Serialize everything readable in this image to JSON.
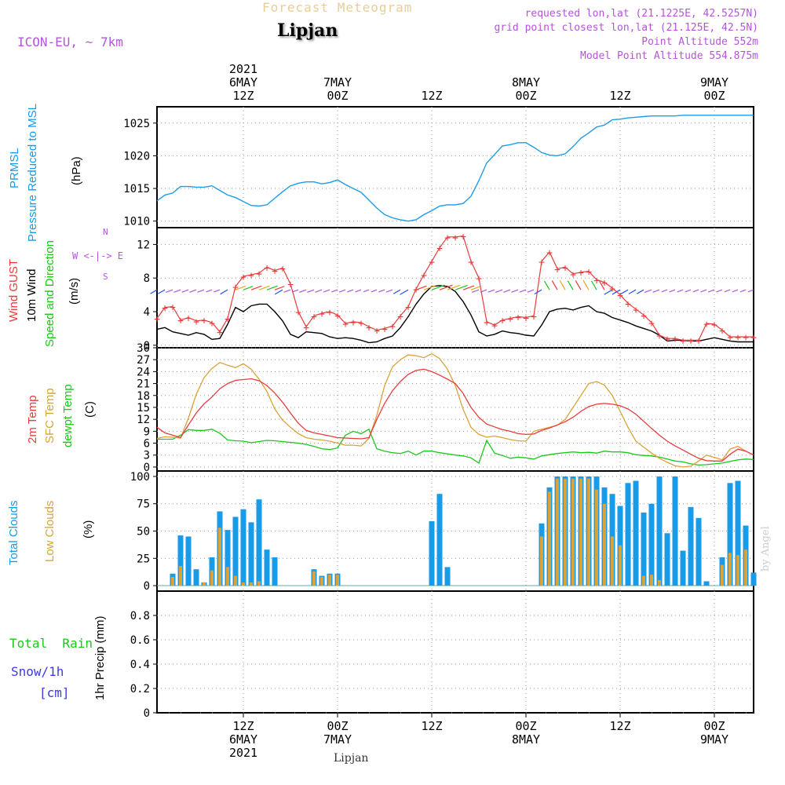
{
  "header": {
    "product": "Forecast Meteogram",
    "model": "ICON-EU, ~ 7km",
    "location": "Lipjan",
    "requested": "requested lon,lat (21.1225E, 42.5257N)",
    "grid_point": "grid point closest lon,lat (21.125E, 42.5N)",
    "point_alt": "Point Altitude 552m",
    "model_alt": "Model Point Altitude 554.875m"
  },
  "footer": {
    "location": "Lipjan",
    "credit": "by Angel"
  },
  "time_axis": {
    "ticks": [
      {
        "t": 12,
        "hour": "12Z",
        "date": "6MAY",
        "year": "2021"
      },
      {
        "t": 24,
        "hour": "00Z",
        "date": "7MAY",
        "year": ""
      },
      {
        "t": 36,
        "hour": "12Z",
        "date": "",
        "year": ""
      },
      {
        "t": 48,
        "hour": "00Z",
        "date": "8MAY",
        "year": ""
      },
      {
        "t": 60,
        "hour": "12Z",
        "date": "",
        "year": ""
      },
      {
        "t": 72,
        "hour": "00Z",
        "date": "9MAY",
        "year": ""
      }
    ],
    "range": [
      1,
      77
    ],
    "units": "hours since 2021-05-06 00Z"
  },
  "panels": {
    "pressure": {
      "title": "PRMSL",
      "subtitle": "Pressure Reduced to MSL",
      "units": "(hPa)"
    },
    "wind": {
      "title_gust": "Wind GUST",
      "title_wind": "10m Wind",
      "title_dir": "Speed and Direction",
      "units": "(m/s)",
      "compass_n": "N",
      "compass_s": "S",
      "compass_we": "W <-|-> E"
    },
    "temp": {
      "title_2m": "2m Temp",
      "title_sfc": "SFC Temp",
      "title_dew": "dewpt Temp",
      "units": "(C)"
    },
    "clouds": {
      "title_total": "Total Clouds",
      "title_low": "Low Clouds",
      "units": "(%)"
    },
    "precip": {
      "title_rain": "Total  Rain",
      "title_snow": "Snow/1h",
      "title_cm": "[cm]",
      "units": "1hr Precip (mm)"
    }
  },
  "colors": {
    "pressure": "#1e9be8",
    "gust": "#e83c3c",
    "wind": "#000000",
    "t2m": "#e83c3c",
    "sfc": "#d9a23a",
    "dew": "#18c918",
    "total_cloud": "#189be8",
    "low_cloud": "#d9a23a",
    "purple": "#b455d8",
    "rain": "#18c918",
    "snow": "#3c3ce0"
  },
  "chart_data": [
    {
      "type": "line",
      "title": "PRMSL Pressure Reduced to MSL",
      "ylabel": "hPa",
      "ylim": [
        1009,
        1027.5
      ],
      "yticks": [
        1010,
        1015,
        1020,
        1025
      ],
      "x": [
        1,
        2,
        3,
        4,
        5,
        6,
        7,
        8,
        9,
        10,
        11,
        12,
        13,
        14,
        15,
        16,
        17,
        18,
        19,
        20,
        21,
        22,
        23,
        24,
        25,
        26,
        27,
        28,
        29,
        30,
        31,
        32,
        33,
        34,
        35,
        36,
        37,
        38,
        39,
        40,
        41,
        42,
        43,
        44,
        45,
        46,
        47,
        48,
        49,
        50,
        51,
        52,
        53,
        54,
        55,
        56,
        57,
        58,
        59,
        60,
        61,
        62,
        63,
        64,
        65,
        66,
        67,
        68,
        69,
        70,
        71,
        72,
        73,
        74,
        75,
        76,
        77
      ],
      "series": [
        {
          "name": "PRMSL",
          "values": [
            1013.1,
            1014.0,
            1014.3,
            1015.3,
            1015.3,
            1015.2,
            1015.2,
            1015.4,
            1014.7,
            1014.0,
            1013.6,
            1013.0,
            1012.4,
            1012.3,
            1012.5,
            1013.5,
            1014.5,
            1015.4,
            1015.8,
            1016.0,
            1016.0,
            1015.7,
            1015.9,
            1016.3,
            1015.6,
            1015.0,
            1014.4,
            1013.2,
            1012.0,
            1011.0,
            1010.5,
            1010.2,
            1010.0,
            1010.2,
            1011.0,
            1011.6,
            1012.3,
            1012.5,
            1012.5,
            1012.7,
            1013.8,
            1016.2,
            1018.9,
            1020.2,
            1021.5,
            1021.7,
            1022.0,
            1022.0,
            1021.3,
            1020.5,
            1020.1,
            1020.0,
            1020.3,
            1021.4,
            1022.7,
            1023.5,
            1024.4,
            1024.7,
            1025.5,
            1025.6,
            1025.8,
            1025.9,
            1026.0,
            1026.1,
            1026.1,
            1026.1,
            1026.1,
            1026.2,
            1026.2,
            1026.2,
            1026.2,
            1026.2,
            1026.2,
            1026.2,
            1026.2,
            1026.2,
            1026.2
          ]
        }
      ]
    },
    {
      "type": "line",
      "title": "Wind GUST / 10m Wind",
      "ylabel": "m/s",
      "ylim": [
        -0.3,
        14
      ],
      "yticks": [
        0,
        4,
        8,
        12
      ],
      "x": [
        1,
        2,
        3,
        4,
        5,
        6,
        7,
        8,
        9,
        10,
        11,
        12,
        13,
        14,
        15,
        16,
        17,
        18,
        19,
        20,
        21,
        22,
        23,
        24,
        25,
        26,
        27,
        28,
        29,
        30,
        31,
        32,
        33,
        34,
        35,
        36,
        37,
        38,
        39,
        40,
        41,
        42,
        43,
        44,
        45,
        46,
        47,
        48,
        49,
        50,
        51,
        52,
        53,
        54,
        55,
        56,
        57,
        58,
        59,
        60,
        61,
        62,
        63,
        64,
        65,
        66,
        67,
        68,
        69,
        70,
        71,
        72,
        73,
        74,
        75,
        76,
        77
      ],
      "series": [
        {
          "name": "Wind GUST",
          "values": [
            3.2,
            4.5,
            4.6,
            3.0,
            3.3,
            2.9,
            3.0,
            2.7,
            1.6,
            3.2,
            7.0,
            8.2,
            8.4,
            8.6,
            9.3,
            8.9,
            9.2,
            7.3,
            4.0,
            2.2,
            3.5,
            3.8,
            4.0,
            3.6,
            2.6,
            2.8,
            2.7,
            2.2,
            1.8,
            2.0,
            2.3,
            3.5,
            4.6,
            6.7,
            8.4,
            10.0,
            11.6,
            12.9,
            12.9,
            13.0,
            10.0,
            8.0,
            2.8,
            2.4,
            3.0,
            3.2,
            3.4,
            3.3,
            3.5,
            10.0,
            11.1,
            9.1,
            9.3,
            8.5,
            8.7,
            8.8,
            7.8,
            7.5,
            6.8,
            6.0,
            5.0,
            4.3,
            3.6,
            2.7,
            1.2,
            0.8,
            0.8,
            0.6,
            0.6,
            0.6,
            2.6,
            2.5,
            1.8,
            1.0,
            1.0,
            1.0,
            1.0
          ]
        },
        {
          "name": "10m Wind",
          "values": [
            1.9,
            2.1,
            1.6,
            1.4,
            1.2,
            1.5,
            1.3,
            0.7,
            0.8,
            2.5,
            4.5,
            4.0,
            4.7,
            4.9,
            4.9,
            4.0,
            2.9,
            1.3,
            0.9,
            1.6,
            1.5,
            1.4,
            1.0,
            0.8,
            0.9,
            0.8,
            0.6,
            0.3,
            0.4,
            0.8,
            1.1,
            2.1,
            3.4,
            4.9,
            6.1,
            7.0,
            7.1,
            7.0,
            6.4,
            5.2,
            3.6,
            1.6,
            1.1,
            1.3,
            1.7,
            1.5,
            1.4,
            1.2,
            1.1,
            2.4,
            4.0,
            4.3,
            4.4,
            4.2,
            4.5,
            4.7,
            4.0,
            3.8,
            3.3,
            3.0,
            2.7,
            2.3,
            2.0,
            1.7,
            1.2,
            0.5,
            0.6,
            0.6,
            0.5,
            0.5,
            0.7,
            0.9,
            0.7,
            0.5,
            0.4,
            0.4,
            0.4
          ]
        }
      ]
    },
    {
      "type": "line",
      "title": "2m Temp / SFC Temp / dewpt Temp",
      "ylabel": "C",
      "ylim": [
        -1,
        30
      ],
      "yticks": [
        0,
        3,
        6,
        9,
        12,
        15,
        18,
        21,
        24,
        27,
        30
      ],
      "x": [
        1,
        2,
        3,
        4,
        5,
        6,
        7,
        8,
        9,
        10,
        11,
        12,
        13,
        14,
        15,
        16,
        17,
        18,
        19,
        20,
        21,
        22,
        23,
        24,
        25,
        26,
        27,
        28,
        29,
        30,
        31,
        32,
        33,
        34,
        35,
        36,
        37,
        38,
        39,
        40,
        41,
        42,
        43,
        44,
        45,
        46,
        47,
        48,
        49,
        50,
        51,
        52,
        53,
        54,
        55,
        56,
        57,
        58,
        59,
        60,
        61,
        62,
        63,
        64,
        65,
        66,
        67,
        68,
        69,
        70,
        71,
        72,
        73,
        74,
        75,
        76,
        77
      ],
      "series": [
        {
          "name": "2m Temp",
          "values": [
            10.0,
            8.6,
            8.0,
            7.4,
            10.6,
            13.6,
            15.9,
            17.6,
            19.7,
            21.0,
            21.8,
            22.0,
            22.2,
            21.7,
            20.5,
            18.6,
            16.3,
            13.6,
            11.0,
            9.2,
            8.6,
            8.2,
            7.8,
            7.4,
            7.3,
            7.2,
            7.1,
            7.4,
            12.0,
            16.0,
            19.2,
            21.5,
            23.3,
            24.3,
            24.6,
            24.0,
            23.1,
            22.1,
            21.0,
            18.5,
            15.0,
            12.5,
            10.8,
            10.1,
            9.4,
            9.0,
            8.4,
            8.2,
            8.3,
            9.2,
            9.8,
            10.6,
            11.4,
            12.5,
            14.0,
            15.2,
            15.8,
            16.0,
            15.8,
            15.4,
            14.6,
            13.3,
            11.5,
            9.7,
            8.0,
            6.5,
            5.3,
            4.3,
            3.2,
            2.2,
            1.6,
            1.5,
            1.5,
            3.2,
            4.5,
            4.0,
            3.0
          ]
        },
        {
          "name": "SFC Temp",
          "values": [
            7.2,
            7.6,
            7.5,
            7.3,
            12.3,
            18.3,
            22.5,
            24.8,
            26.3,
            25.6,
            25.0,
            26.0,
            24.6,
            22.1,
            19.0,
            14.6,
            11.8,
            10.0,
            8.4,
            7.4,
            7.0,
            6.8,
            6.5,
            6.0,
            5.5,
            5.5,
            5.3,
            7.2,
            13.0,
            20.5,
            25.2,
            27.0,
            28.2,
            28.0,
            27.5,
            28.5,
            27.3,
            24.6,
            20.5,
            14.5,
            10.0,
            8.2,
            7.5,
            7.8,
            7.4,
            6.9,
            6.6,
            6.5,
            9.0,
            9.5,
            10.0,
            10.5,
            12.0,
            15.0,
            18.0,
            21.0,
            21.5,
            20.6,
            18.0,
            14.0,
            10.0,
            6.5,
            5.0,
            3.5,
            2.2,
            1.2,
            0.3,
            0.0,
            0.2,
            1.5,
            3.0,
            2.4,
            1.8,
            4.5,
            5.2,
            4.0,
            3.0
          ]
        },
        {
          "name": "dewpt Temp",
          "values": [
            7.0,
            7.0,
            7.0,
            8.0,
            9.4,
            9.2,
            9.2,
            9.5,
            8.5,
            6.8,
            6.6,
            6.5,
            6.1,
            6.4,
            6.7,
            6.6,
            6.4,
            6.2,
            6.0,
            5.7,
            5.2,
            4.6,
            4.4,
            4.8,
            8.0,
            9.0,
            8.4,
            9.5,
            4.6,
            4.0,
            3.6,
            3.4,
            4.0,
            3.0,
            4.0,
            4.0,
            3.6,
            3.3,
            3.0,
            2.8,
            2.3,
            1.0,
            6.7,
            3.5,
            2.9,
            2.2,
            2.5,
            2.3,
            2.0,
            2.8,
            3.1,
            3.4,
            3.6,
            3.8,
            3.6,
            3.7,
            3.5,
            4.0,
            3.8,
            3.8,
            3.6,
            3.1,
            2.9,
            2.8,
            2.5,
            2.0,
            1.5,
            1.3,
            0.8,
            0.5,
            0.6,
            0.8,
            1.0,
            1.4,
            1.8,
            2.0,
            1.9
          ]
        }
      ]
    },
    {
      "type": "bar",
      "title": "Total Clouds / Low Clouds",
      "ylabel": "%",
      "ylim": [
        -5,
        105
      ],
      "yticks": [
        0,
        25,
        50,
        75,
        100
      ],
      "x": [
        1,
        2,
        3,
        4,
        5,
        6,
        7,
        8,
        9,
        10,
        11,
        12,
        13,
        14,
        15,
        16,
        17,
        18,
        19,
        20,
        21,
        22,
        23,
        24,
        25,
        26,
        27,
        28,
        29,
        30,
        31,
        32,
        33,
        34,
        35,
        36,
        37,
        38,
        39,
        40,
        41,
        42,
        43,
        44,
        45,
        46,
        47,
        48,
        49,
        50,
        51,
        52,
        53,
        54,
        55,
        56,
        57,
        58,
        59,
        60,
        61,
        62,
        63,
        64,
        65,
        66,
        67,
        68,
        69,
        70,
        71,
        72,
        73,
        74,
        75,
        76,
        77
      ],
      "series": [
        {
          "name": "Total Clouds",
          "values": [
            0,
            0,
            11,
            46,
            45,
            15,
            3,
            26,
            68,
            51,
            63,
            70,
            58,
            79,
            33,
            26,
            0,
            0,
            0,
            0,
            15,
            9,
            11,
            11,
            0,
            0,
            0,
            0,
            0,
            0,
            0,
            0,
            0,
            0,
            0,
            59,
            84,
            17,
            0,
            0,
            0,
            0,
            0,
            0,
            0,
            0,
            0,
            0,
            0,
            57,
            90,
            100,
            100,
            100,
            100,
            100,
            100,
            90,
            84,
            73,
            94,
            96,
            67,
            75,
            100,
            48,
            100,
            32,
            72,
            62,
            4,
            0,
            26,
            94,
            96,
            55,
            12
          ]
        },
        {
          "name": "Low Clouds",
          "values": [
            0,
            0,
            8,
            18,
            0,
            0,
            3,
            14,
            53,
            17,
            9,
            3,
            3,
            4,
            0,
            0,
            0,
            0,
            0,
            0,
            13,
            8,
            10,
            10,
            0,
            0,
            0,
            0,
            0,
            0,
            0,
            0,
            0,
            0,
            0,
            0,
            0,
            0,
            0,
            0,
            0,
            0,
            0,
            0,
            0,
            0,
            0,
            0,
            0,
            45,
            86,
            98,
            98,
            98,
            98,
            98,
            88,
            75,
            45,
            37,
            0,
            0,
            9,
            10,
            5,
            0,
            0,
            0,
            0,
            0,
            0,
            0,
            19,
            30,
            28,
            33,
            0
          ]
        }
      ]
    },
    {
      "type": "bar",
      "title": "1hr Precip",
      "ylabel": "1hr Precip (mm)",
      "ylim": [
        0,
        1
      ],
      "yticks": [
        0,
        0.2,
        0.4,
        0.6,
        0.8
      ],
      "x": [
        1,
        77
      ],
      "series": [
        {
          "name": "Total Rain",
          "values": [
            0,
            0
          ]
        }
      ]
    }
  ]
}
